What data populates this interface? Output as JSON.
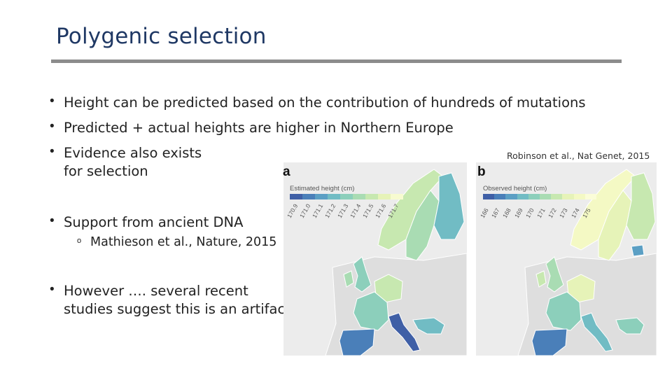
{
  "slide": {
    "title": "Polygenic selection",
    "bullets": [
      {
        "text": "Height can be predicted based on the contribution of hundreds of mutations"
      },
      {
        "text": "Predicted + actual heights are higher in Northern Europe"
      },
      {
        "text": "Evidence also exists",
        "text2": "for selection"
      },
      {
        "text": "Support from ancient DNA",
        "sub": "Mathieson et al., Nature, 2015"
      },
      {
        "text": "However …. several recent",
        "text2": "studies suggest this is an artifact"
      }
    ],
    "bullet_glyph": "•",
    "sub_glyph": "o",
    "citation": "Robinson et al., Nat Genet, 2015"
  },
  "figure": {
    "panel_a": {
      "letter": "a",
      "legend_title": "Estimated height (cm)",
      "ticks": [
        "170.9",
        "171.0",
        "171.1",
        "171.2",
        "171.3",
        "171.4",
        "171.5",
        "171.6",
        "171.7"
      ],
      "colors": [
        "#3f5fa6",
        "#4a7fb9",
        "#5b9fc4",
        "#71bcc4",
        "#8ccfbb",
        "#a9dcb3",
        "#c7e8b0",
        "#e6f3b8",
        "#f7fbd0"
      ]
    },
    "panel_b": {
      "letter": "b",
      "legend_title": "Observed height (cm)",
      "ticks": [
        "166",
        "167",
        "168",
        "169",
        "170",
        "171",
        "172",
        "173",
        "174",
        "175"
      ],
      "colors": [
        "#3f5fa6",
        "#4a7fb9",
        "#5b9fc4",
        "#71bcc4",
        "#8ccfbb",
        "#a9dcb3",
        "#c7e8b0",
        "#e6f3b8",
        "#f4f9c4",
        "#fbfdd8"
      ]
    }
  }
}
